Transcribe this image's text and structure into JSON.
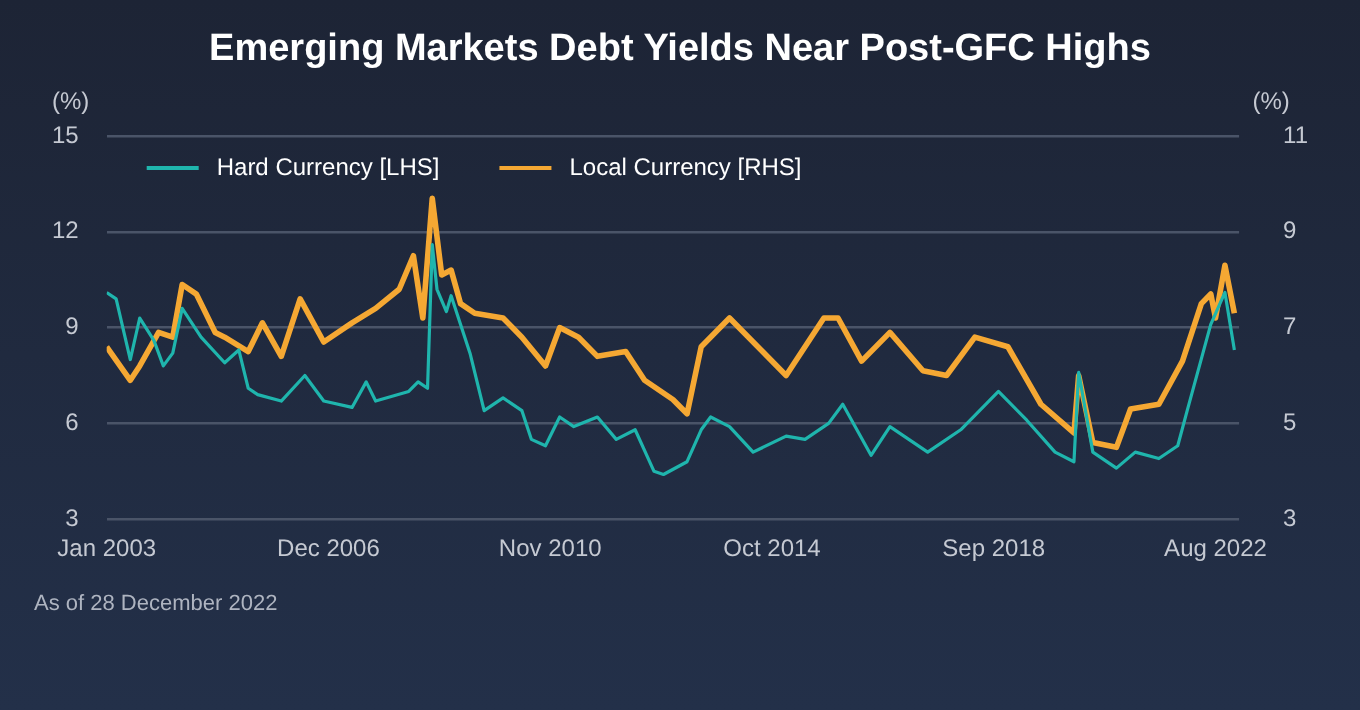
{
  "chart_data": {
    "type": "line",
    "title": "Emerging Markets Debt Yields Near Post-GFC Highs",
    "ylabel": "(%)",
    "y2label": "(%)",
    "xlim": [
      "2003-01",
      "2023-01"
    ],
    "xticks": [
      {
        "value": "2003-01",
        "label": "Jan 2003"
      },
      {
        "value": "2006-12",
        "label": "Dec 2006"
      },
      {
        "value": "2010-11",
        "label": "Nov 2010"
      },
      {
        "value": "2014-10",
        "label": "Oct 2014"
      },
      {
        "value": "2018-09",
        "label": "Sep 2018"
      },
      {
        "value": "2022-08",
        "label": "Aug 2022"
      }
    ],
    "ylim": [
      3,
      15
    ],
    "yticks": [
      3,
      6,
      9,
      12,
      15
    ],
    "y2lim": [
      3,
      11
    ],
    "y2ticks": [
      3,
      5,
      7,
      9,
      11
    ],
    "grid": "y",
    "legend": "top left",
    "marker": "none",
    "line_style": "solid",
    "annotations": [
      "As of 28 December 2022"
    ],
    "series": [
      {
        "name": "Hard Currency [LHS]",
        "color": "#1fb5ad",
        "x": [
          "2003-01",
          "2003-03",
          "2003-06",
          "2003-08",
          "2003-11",
          "2004-01",
          "2004-03",
          "2004-05",
          "2004-09",
          "2005-02",
          "2005-05",
          "2005-07",
          "2005-09",
          "2006-02",
          "2006-07",
          "2006-11",
          "2007-05",
          "2007-08",
          "2007-10",
          "2008-05",
          "2008-07",
          "2008-09",
          "2008-10",
          "2008-11",
          "2009-01",
          "2009-02",
          "2009-06",
          "2009-09",
          "2010-01",
          "2010-05",
          "2010-07",
          "2010-10",
          "2011-01",
          "2011-04",
          "2011-09",
          "2012-01",
          "2012-05",
          "2012-09",
          "2012-11",
          "2013-04",
          "2013-07",
          "2013-09",
          "2014-01",
          "2014-06",
          "2015-01",
          "2015-05",
          "2015-10",
          "2016-01",
          "2016-07",
          "2016-11",
          "2017-07",
          "2018-02",
          "2018-10",
          "2019-04",
          "2019-10",
          "2020-02",
          "2020-03",
          "2020-06",
          "2020-11",
          "2021-03",
          "2021-08",
          "2021-12",
          "2022-02",
          "2022-07",
          "2022-10",
          "2022-12"
        ],
        "values": [
          10.1,
          9.9,
          8.0,
          9.3,
          8.6,
          7.8,
          8.2,
          9.6,
          8.7,
          7.9,
          8.3,
          7.1,
          6.9,
          6.7,
          7.5,
          6.7,
          6.5,
          7.3,
          6.7,
          7.0,
          7.3,
          7.1,
          11.6,
          10.2,
          9.5,
          10.0,
          8.2,
          6.4,
          6.8,
          6.4,
          5.5,
          5.3,
          6.2,
          5.9,
          6.2,
          5.5,
          5.8,
          4.5,
          4.4,
          4.8,
          5.8,
          6.2,
          5.9,
          5.1,
          5.6,
          5.5,
          6.0,
          6.6,
          5.0,
          5.9,
          5.1,
          5.8,
          7.0,
          6.1,
          5.1,
          4.8,
          7.6,
          5.1,
          4.6,
          5.1,
          4.9,
          5.3,
          6.4,
          9.1,
          10.1,
          8.3
        ]
      },
      {
        "name": "Local Currency [RHS]",
        "color": "#f5a833",
        "axis": "y2",
        "x": [
          "2003-01",
          "2003-06",
          "2003-08",
          "2003-12",
          "2004-03",
          "2004-05",
          "2004-08",
          "2004-12",
          "2005-02",
          "2005-07",
          "2005-10",
          "2006-02",
          "2006-06",
          "2006-11",
          "2007-05",
          "2007-10",
          "2008-03",
          "2008-06",
          "2008-08",
          "2008-10",
          "2008-12",
          "2009-02",
          "2009-04",
          "2009-07",
          "2010-01",
          "2010-05",
          "2010-10",
          "2011-01",
          "2011-05",
          "2011-09",
          "2012-03",
          "2012-07",
          "2013-01",
          "2013-04",
          "2013-07",
          "2014-01",
          "2014-08",
          "2015-01",
          "2015-09",
          "2015-12",
          "2016-05",
          "2016-11",
          "2017-06",
          "2017-11",
          "2018-05",
          "2018-12",
          "2019-07",
          "2020-02",
          "2020-03",
          "2020-06",
          "2020-11",
          "2021-02",
          "2021-08",
          "2022-01",
          "2022-05",
          "2022-07",
          "2022-08",
          "2022-10",
          "2022-12"
        ],
        "values": [
          6.6,
          5.9,
          6.2,
          6.9,
          6.8,
          7.9,
          7.7,
          6.9,
          6.8,
          6.5,
          7.1,
          6.4,
          7.6,
          6.7,
          7.1,
          7.4,
          7.8,
          8.5,
          7.2,
          9.7,
          8.1,
          8.2,
          7.5,
          7.3,
          7.2,
          6.8,
          6.2,
          7.0,
          6.8,
          6.4,
          6.5,
          5.9,
          5.5,
          5.2,
          6.6,
          7.2,
          6.5,
          6.0,
          7.2,
          7.2,
          6.3,
          6.9,
          6.1,
          6.0,
          6.8,
          6.6,
          5.4,
          4.8,
          6.0,
          4.6,
          4.5,
          5.3,
          5.4,
          6.3,
          7.5,
          7.7,
          7.2,
          8.3,
          7.3
        ]
      }
    ]
  }
}
